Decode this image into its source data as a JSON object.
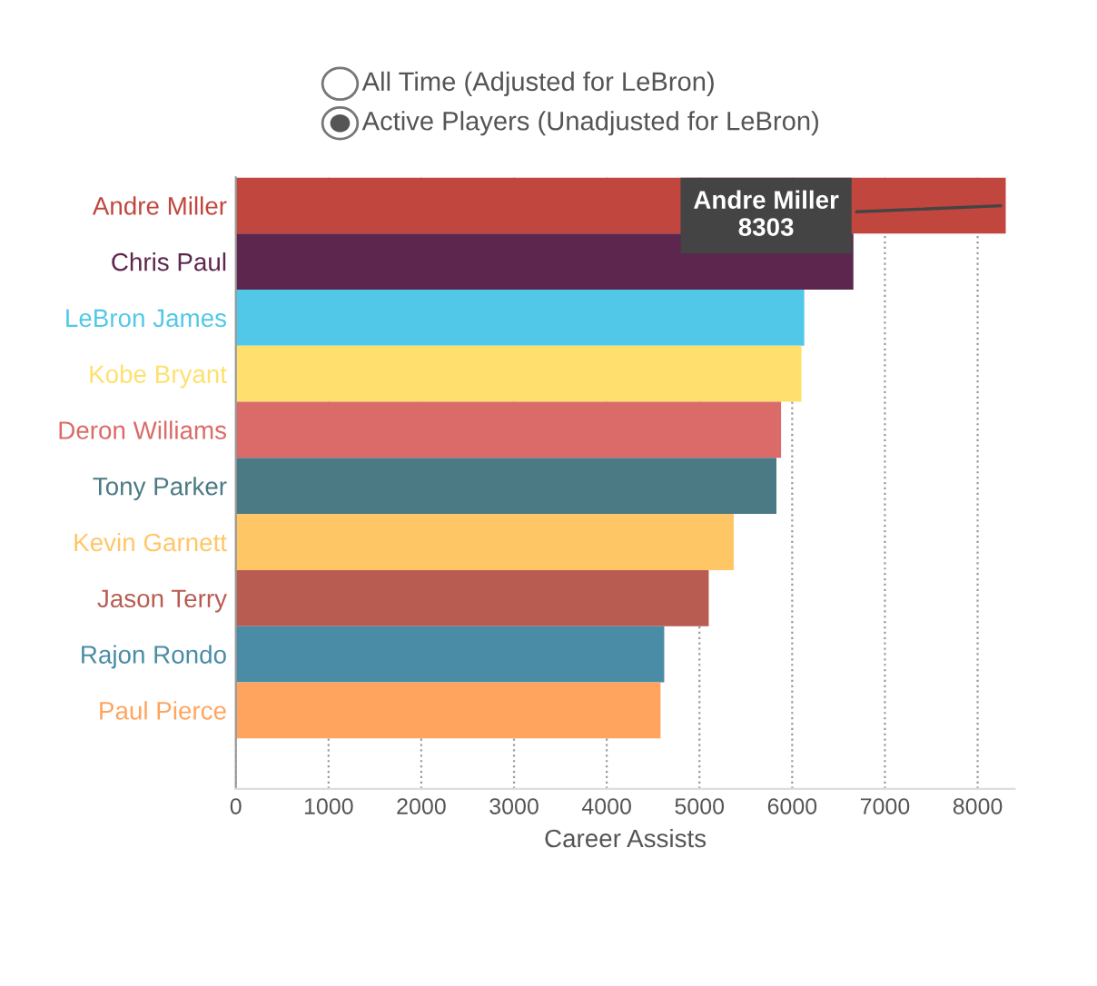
{
  "chart_data": {
    "type": "bar",
    "orientation": "horizontal",
    "xlabel": "Career Assists",
    "categories": [
      "Andre Miller",
      "Chris Paul",
      "LeBron James",
      "Kobe Bryant",
      "Deron Williams",
      "Tony Parker",
      "Kevin Garnett",
      "Jason Terry",
      "Rajon Rondo",
      "Paul Pierce"
    ],
    "values": [
      8303,
      6660,
      6130,
      6100,
      5880,
      5830,
      5370,
      5100,
      4620,
      4580
    ],
    "colors": [
      "#c1463e",
      "#5d264e",
      "#52c8e8",
      "#ffe06e",
      "#db6b68",
      "#4b7a84",
      "#ffc666",
      "#b85c52",
      "#4a8ca6",
      "#ffa45e"
    ],
    "xlim": [
      0,
      8400
    ],
    "xticks": [
      0,
      1000,
      2000,
      3000,
      4000,
      5000,
      6000,
      7000,
      8000
    ],
    "grid": "x",
    "annotations": [
      "All Time (Adjusted for LeBron)",
      "Active Players (Unadjusted for LeBron)",
      {
        "text": "Andre Miller\n8303",
        "x": 8303,
        "y": "Andre Miller"
      }
    ]
  }
}
